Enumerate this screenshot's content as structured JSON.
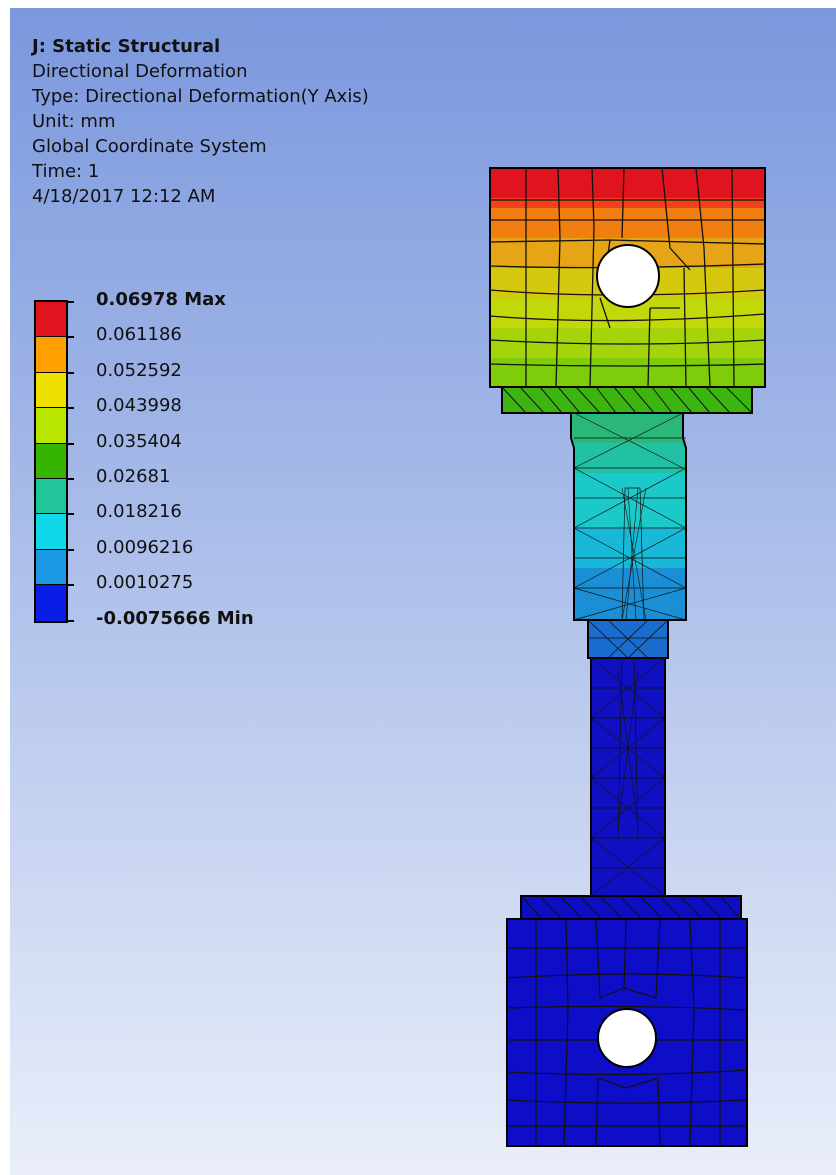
{
  "info": {
    "title": "J: Static Structural",
    "result": "Directional Deformation",
    "type": "Type: Directional Deformation(Y Axis)",
    "unit": "Unit: mm",
    "coord": "Global Coordinate System",
    "time": "Time: 1",
    "date": "4/18/2017 12:12 AM"
  },
  "legend": {
    "labels": [
      "0.06978 Max",
      "0.061186",
      "0.052592",
      "0.043998",
      "0.035404",
      "0.02681",
      "0.018216",
      "0.0096216",
      "0.0010275",
      "-0.0075666 Min"
    ],
    "colors": [
      "#e0141e",
      "#ff9f00",
      "#f0e000",
      "#b8e600",
      "#36b500",
      "#21c59a",
      "#11d8e8",
      "#1a98e6",
      "#0a1de6"
    ]
  }
}
